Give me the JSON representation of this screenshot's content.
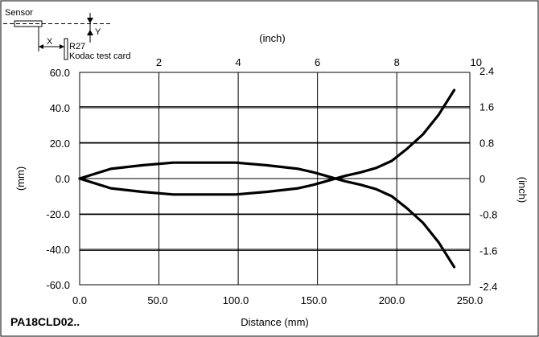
{
  "chart_data": {
    "type": "line",
    "xlabel": "Distance (mm)",
    "ylabel": "(mm)",
    "y2label": "(inch)",
    "x2label": "(inch)",
    "xlim": [
      0,
      250
    ],
    "ylim": [
      -60,
      60
    ],
    "x_ticks": [
      0,
      50,
      100,
      150,
      200,
      250
    ],
    "x_tick_labels": [
      "0.0",
      "50.0",
      "100.0",
      "150.0",
      "200.0",
      "250.0"
    ],
    "y_ticks": [
      -60,
      -40,
      -20,
      0,
      20,
      40,
      60
    ],
    "y_tick_labels": [
      "-60.0",
      "-40.0",
      "-20.0",
      "0.0",
      "20.0",
      "40.0",
      "60.0"
    ],
    "top_ticks_inch": [
      0,
      2,
      4,
      6,
      8,
      10
    ],
    "top_tick_labels": [
      "",
      "2",
      "4",
      "6",
      "8",
      "10"
    ],
    "right_ticks_inch": [
      -2.4,
      -1.6,
      -0.8,
      0,
      0.8,
      1.6,
      2.4
    ],
    "right_tick_labels": [
      "-2.4",
      "-1.6",
      "-0.8",
      "0",
      "0.8",
      "1.6",
      "2.4"
    ],
    "grid": true,
    "series": [
      {
        "x": [
          0,
          20,
          40,
          60,
          80,
          100,
          120,
          140,
          150,
          160,
          170,
          180,
          190,
          200,
          210,
          220,
          230,
          240
        ],
        "y": [
          0,
          5.5,
          7.5,
          9,
          9,
          9,
          7.5,
          5.5,
          3.5,
          1,
          -1.5,
          -3.5,
          -6,
          -10,
          -17,
          -25,
          -36,
          -50
        ]
      },
      {
        "x": [
          0,
          20,
          40,
          60,
          80,
          100,
          120,
          140,
          150,
          160,
          170,
          180,
          190,
          200,
          210,
          220,
          230,
          240
        ],
        "y": [
          0,
          -5.5,
          -7.5,
          -9,
          -9,
          -9,
          -7.5,
          -5.5,
          -3.5,
          -1,
          1.5,
          3.5,
          6,
          10,
          17,
          25,
          36,
          50
        ]
      }
    ]
  },
  "inset": {
    "sensor": "Sensor",
    "x_label": "X",
    "y_label": "Y",
    "r27": "R27",
    "card": "Kodac test card"
  },
  "product_code": "PA18CLD02.."
}
